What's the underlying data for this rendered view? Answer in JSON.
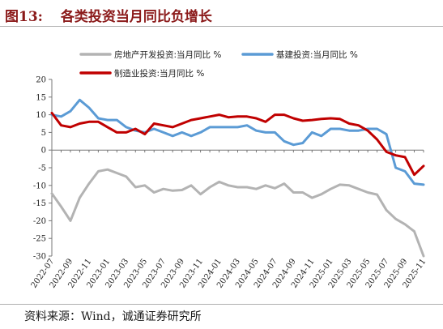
{
  "title_prefix": "图13:",
  "title_text": "各类投资当月同比负增长",
  "source": "资料来源：Wind，诚通证券研究所",
  "chart_data": {
    "type": "line",
    "title": "各类投资当月同比负增长",
    "xlabel": "",
    "ylabel": "",
    "ylim": [
      -30,
      20
    ],
    "yticks": [
      20,
      15,
      10,
      5,
      0,
      -5,
      -10,
      -15,
      -20,
      -25,
      -30
    ],
    "grid": false,
    "legend_position": "top",
    "x": [
      "2022-07",
      "2022-08",
      "2022-09",
      "2022-10",
      "2022-11",
      "2022-12",
      "2023-01",
      "2023-02",
      "2023-03",
      "2023-04",
      "2023-05",
      "2023-06",
      "2023-07",
      "2023-08",
      "2023-09",
      "2023-10",
      "2023-11",
      "2023-12",
      "2024-01",
      "2024-02",
      "2024-03",
      "2024-04",
      "2024-05",
      "2024-06",
      "2024-07",
      "2024-08",
      "2024-09",
      "2024-10",
      "2024-11",
      "2024-12",
      "2025-01",
      "2025-02",
      "2025-03",
      "2025-04",
      "2025-05",
      "2025-06",
      "2025-07",
      "2025-08",
      "2025-09",
      "2025-10",
      "2025-11"
    ],
    "xtick_labels": [
      "2022-07",
      "2022-09",
      "2022-11",
      "2023-01",
      "2023-03",
      "2023-05",
      "2023-07",
      "2023-09",
      "2023-11",
      "2024-01",
      "2024-03",
      "2024-05",
      "2024-07",
      "2024-09",
      "2024-11",
      "2025-01",
      "2025-03",
      "2025-05",
      "2025-07",
      "2025-09",
      "2025-11"
    ],
    "series": [
      {
        "name": "房地产开发投资:当月同比 %",
        "color": "#b3b3b3",
        "values": [
          -12.3,
          -16.0,
          -20.0,
          -13.5,
          -9.5,
          -6.0,
          -5.5,
          -6.5,
          -7.5,
          -10.5,
          -10.0,
          -12.0,
          -11.0,
          -11.5,
          -11.3,
          -10.0,
          -12.5,
          -10.5,
          -9.0,
          -10.0,
          -10.5,
          -10.5,
          -11.0,
          -10.0,
          -10.8,
          -9.5,
          -12.0,
          -12.0,
          -13.5,
          -12.5,
          -11.0,
          -9.8,
          -10.0,
          -11.0,
          -12.0,
          -12.6,
          -17.0,
          -19.5,
          -21.0,
          -23.0,
          -30.0
        ]
      },
      {
        "name": "基建投资:当月同比 %",
        "color": "#5b9bd5",
        "values": [
          10.0,
          9.5,
          11.0,
          14.2,
          12.0,
          9.0,
          8.5,
          8.5,
          6.5,
          5.5,
          5.0,
          6.0,
          5.0,
          4.0,
          5.0,
          4.0,
          5.0,
          6.5,
          6.5,
          6.5,
          6.5,
          7.0,
          5.5,
          5.0,
          5.0,
          2.5,
          1.5,
          2.0,
          5.0,
          4.0,
          6.0,
          6.0,
          5.5,
          5.5,
          6.0,
          6.0,
          4.5,
          -5.0,
          -6.0,
          -9.5,
          -9.8
        ]
      },
      {
        "name": "制造业投资:当月同比 %",
        "color": "#c00000",
        "values": [
          10.5,
          7.0,
          6.5,
          7.5,
          8.0,
          8.0,
          6.5,
          5.0,
          5.0,
          6.0,
          4.5,
          7.5,
          7.0,
          6.5,
          7.5,
          8.5,
          9.0,
          9.5,
          10.0,
          9.3,
          9.5,
          9.5,
          9.0,
          8.0,
          10.0,
          10.0,
          9.0,
          8.3,
          8.5,
          8.8,
          9.0,
          8.8,
          7.5,
          7.0,
          5.5,
          3.0,
          -0.5,
          -1.5,
          -2.0,
          -7.0,
          -4.5
        ]
      }
    ]
  }
}
